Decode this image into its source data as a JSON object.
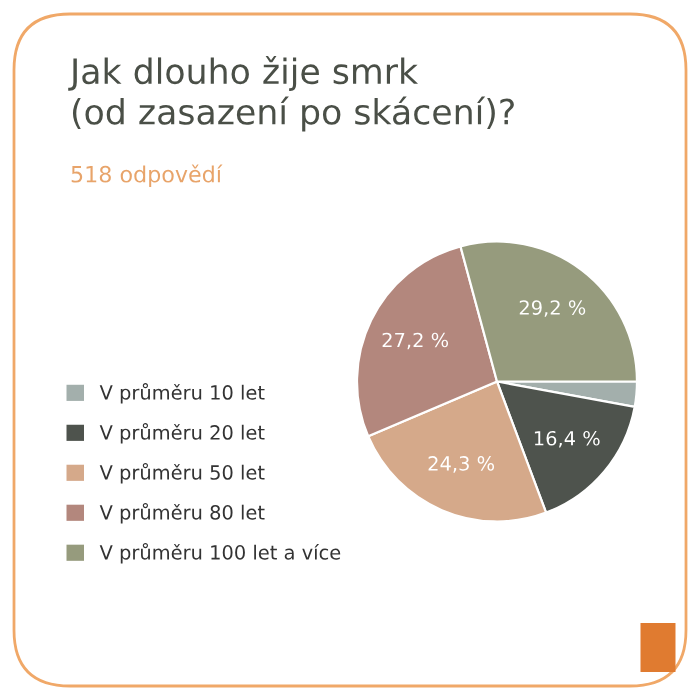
{
  "chart_data": {
    "type": "pie",
    "title": "Jak dlouho žije smrk\n(od zasazení po skácení)?",
    "subtitle": "518 odpovědí",
    "categories": [
      "V průměru 10 let",
      "V průměru 20 let",
      "V průměru 50 let",
      "V průměru 80 let",
      "V průměru 100 let a více"
    ],
    "values": [
      2.9,
      16.4,
      24.3,
      27.2,
      29.2
    ],
    "value_labels": [
      null,
      "16,4 %",
      "24,3 %",
      "27,2 %",
      "29,2 %"
    ],
    "colors": [
      "#a3afac",
      "#4e534d",
      "#d5a98a",
      "#b3877d",
      "#969b7d"
    ],
    "legend": "left"
  }
}
